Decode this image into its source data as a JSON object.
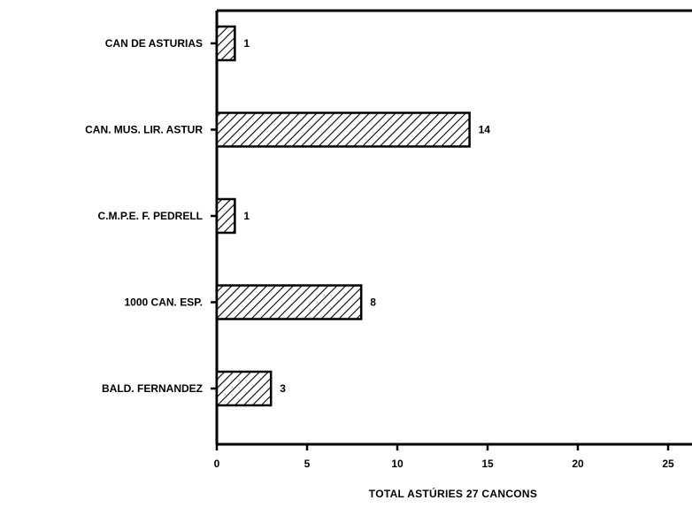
{
  "chart_data": {
    "type": "bar",
    "orientation": "horizontal",
    "categories": [
      "CAN DE ASTURIAS",
      "CAN. MUS. LIR. ASTUR",
      "C.M.P.E. F. PEDRELL",
      "1000 CAN. ESP.",
      "BALD. FERNANDEZ"
    ],
    "values": [
      1,
      14,
      1,
      8,
      3
    ],
    "value_labels": [
      "1",
      "14",
      "1",
      "8",
      "3"
    ],
    "xticks": [
      "0",
      "5",
      "10",
      "15",
      "20",
      "25"
    ],
    "xlim": [
      0,
      26.5
    ],
    "xlabel": "TOTAL ASTÚRIES 27 CANCONS",
    "ylabel": "",
    "title": "",
    "grid": false,
    "bar_fill": "hatched",
    "colors": {
      "bar_stroke": "#000000",
      "hatch": "#000000",
      "axis": "#000000"
    }
  }
}
